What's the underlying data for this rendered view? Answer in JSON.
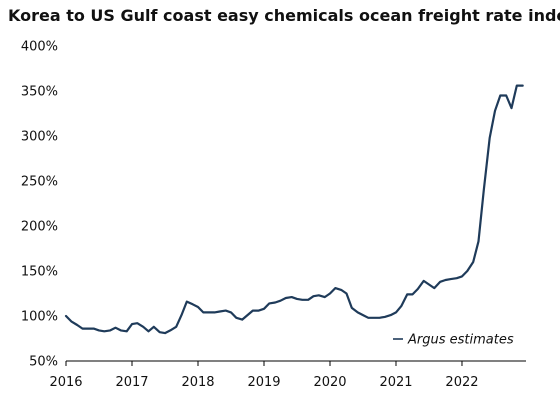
{
  "chart_data": {
    "type": "line",
    "title": "Korea to US Gulf coast easy chemicals ocean freight rate index",
    "xlabel": "",
    "ylabel": "",
    "x_ticks": [
      "2016",
      "2017",
      "2018",
      "2019",
      "2020",
      "2021",
      "2022"
    ],
    "y_ticks": [
      "50%",
      "100%",
      "150%",
      "200%",
      "250%",
      "300%",
      "350%",
      "400%"
    ],
    "xlim": [
      2016.0,
      2022.97
    ],
    "ylim": [
      50,
      400
    ],
    "grid": false,
    "legend": {
      "position": "bottom-right",
      "entries": [
        "Argus estimates"
      ]
    },
    "colors": {
      "line": "#1f3b5a",
      "axis": "#000000"
    },
    "series": [
      {
        "name": "Argus estimates",
        "x": [
          2016.0,
          2016.08,
          2016.17,
          2016.25,
          2016.33,
          2016.42,
          2016.5,
          2016.58,
          2016.67,
          2016.75,
          2016.83,
          2016.92,
          2017.0,
          2017.08,
          2017.17,
          2017.25,
          2017.33,
          2017.42,
          2017.5,
          2017.58,
          2017.67,
          2017.75,
          2017.83,
          2017.92,
          2018.0,
          2018.08,
          2018.17,
          2018.25,
          2018.33,
          2018.42,
          2018.5,
          2018.58,
          2018.67,
          2018.75,
          2018.83,
          2018.92,
          2019.0,
          2019.08,
          2019.17,
          2019.25,
          2019.33,
          2019.42,
          2019.5,
          2019.58,
          2019.67,
          2019.75,
          2019.83,
          2019.92,
          2020.0,
          2020.08,
          2020.17,
          2020.25,
          2020.33,
          2020.42,
          2020.5,
          2020.58,
          2020.67,
          2020.75,
          2020.83,
          2020.92,
          2021.0,
          2021.08,
          2021.17,
          2021.25,
          2021.33,
          2021.42,
          2021.5,
          2021.58,
          2021.67,
          2021.75,
          2021.83,
          2021.92,
          2022.0,
          2022.08,
          2022.17,
          2022.25,
          2022.33,
          2022.42,
          2022.5,
          2022.58,
          2022.67,
          2022.75,
          2022.83,
          2022.92
        ],
        "values": [
          100,
          94,
          90,
          86,
          86,
          86,
          84,
          83,
          84,
          87,
          84,
          83,
          91,
          92,
          88,
          83,
          88,
          82,
          81,
          84,
          88,
          101,
          116,
          113,
          110,
          104,
          104,
          104,
          105,
          106,
          104,
          98,
          96,
          101,
          106,
          106,
          108,
          114,
          115,
          117,
          120,
          121,
          119,
          118,
          118,
          122,
          123,
          121,
          125,
          131,
          129,
          125,
          109,
          104,
          101,
          98,
          98,
          98,
          99,
          101,
          104,
          111,
          124,
          124,
          130,
          139,
          135,
          131,
          138,
          140,
          141,
          142,
          144,
          150,
          160,
          183,
          240,
          298,
          328,
          345,
          345,
          331,
          356,
          356
        ]
      }
    ]
  }
}
